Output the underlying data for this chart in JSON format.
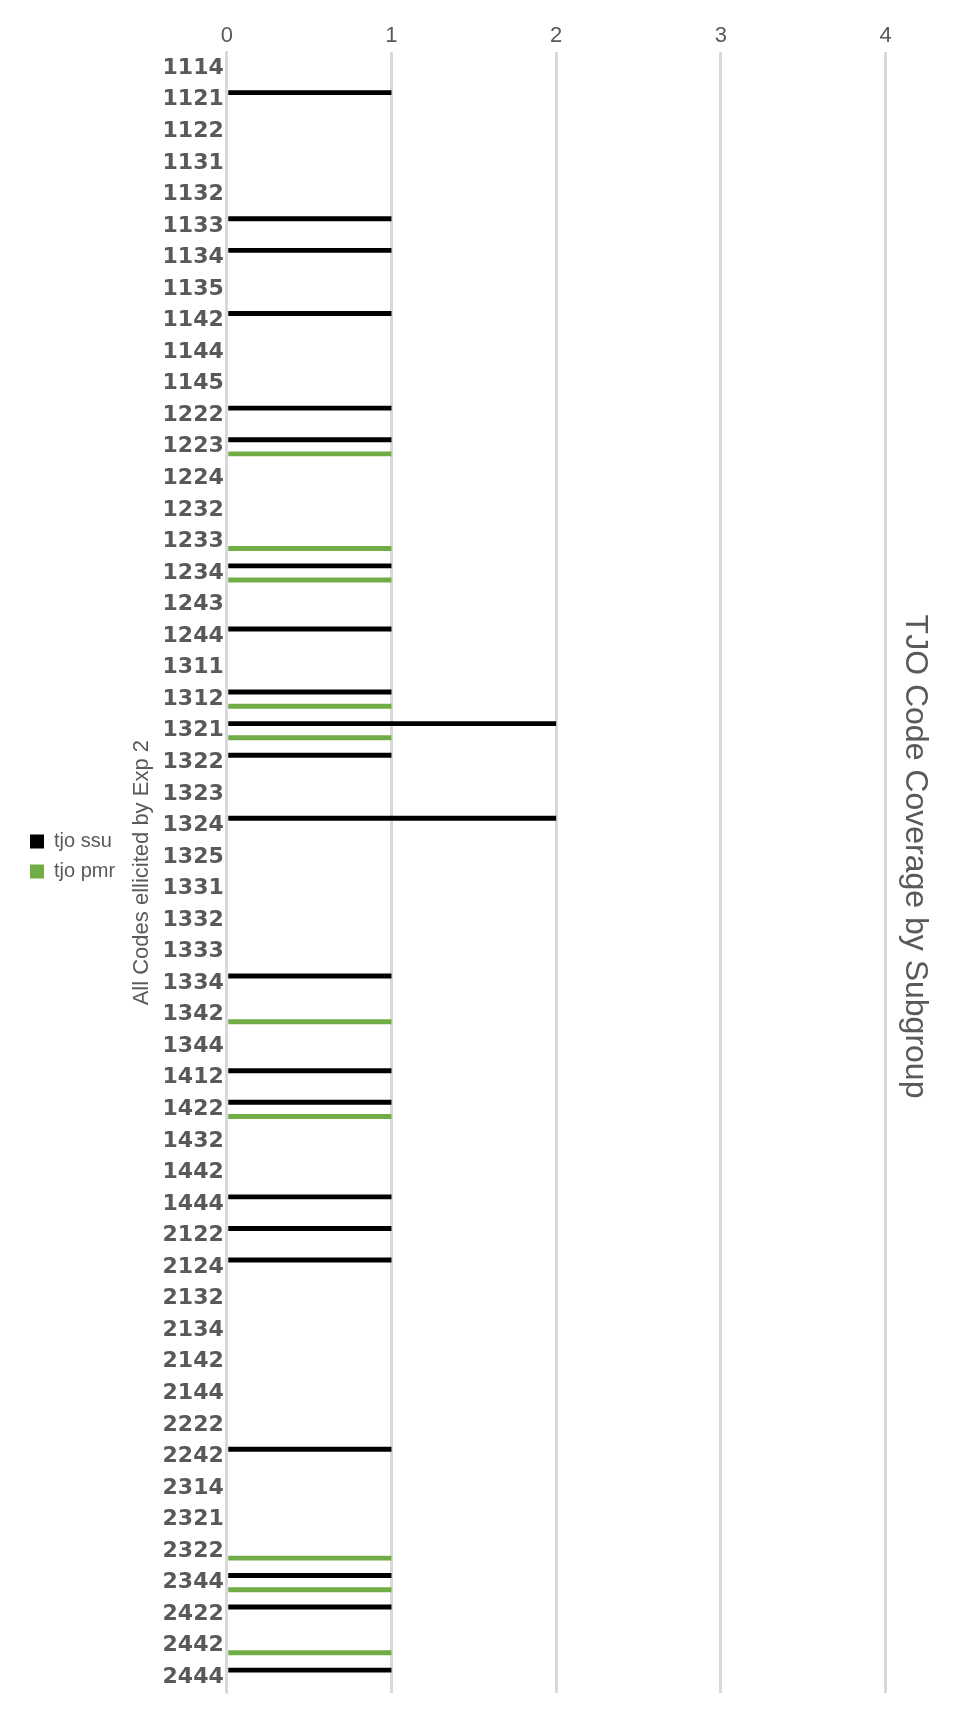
{
  "chart_data": {
    "type": "bar",
    "orientation": "horizontal",
    "title": "TJO Code Coverage by Subgroup",
    "ylabel": "All Codes ellicited by Exp 2",
    "categories": [
      "1114",
      "1121",
      "1122",
      "1131",
      "1132",
      "1133",
      "1134",
      "1135",
      "1142",
      "1144",
      "1145",
      "1222",
      "1223",
      "1224",
      "1232",
      "1233",
      "1234",
      "1243",
      "1244",
      "1311",
      "1312",
      "1321",
      "1322",
      "1323",
      "1324",
      "1325",
      "1331",
      "1332",
      "1333",
      "1334",
      "1342",
      "1344",
      "1412",
      "1422",
      "1432",
      "1442",
      "1444",
      "2122",
      "2124",
      "2132",
      "2134",
      "2142",
      "2144",
      "2222",
      "2242",
      "2314",
      "2321",
      "2322",
      "2344",
      "2422",
      "2442",
      "2444"
    ],
    "series": [
      {
        "name": "tjo ssu",
        "color": "#000000",
        "values": [
          0,
          1,
          0,
          0,
          0,
          1,
          1,
          0,
          1,
          0,
          0,
          1,
          1,
          0,
          0,
          0,
          1,
          0,
          1,
          0,
          1,
          2,
          1,
          0,
          2,
          0,
          0,
          0,
          0,
          1,
          0,
          0,
          1,
          1,
          0,
          0,
          1,
          1,
          1,
          0,
          0,
          0,
          0,
          0,
          1,
          0,
          0,
          0,
          1,
          1,
          0,
          1
        ]
      },
      {
        "name": "tjo pmr",
        "color": "#70ad47",
        "values": [
          0,
          0,
          0,
          0,
          0,
          0,
          0,
          0,
          0,
          0,
          0,
          0,
          1,
          0,
          0,
          1,
          1,
          0,
          0,
          0,
          1,
          1,
          0,
          0,
          0,
          0,
          0,
          0,
          0,
          0,
          1,
          0,
          0,
          1,
          0,
          0,
          0,
          0,
          0,
          0,
          0,
          0,
          0,
          0,
          0,
          0,
          0,
          1,
          1,
          0,
          1,
          0
        ]
      }
    ],
    "xlim": [
      0,
      4
    ],
    "xticks": [
      0,
      1,
      2,
      3,
      4
    ],
    "grid": "x",
    "legend": "left"
  }
}
